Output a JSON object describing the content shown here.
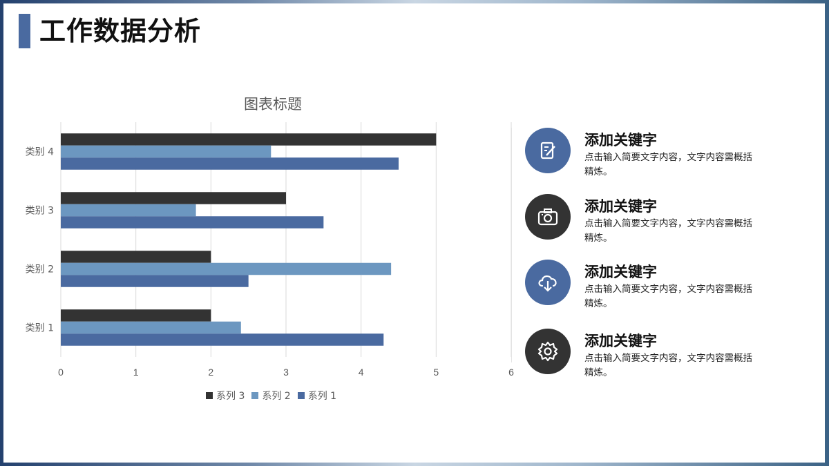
{
  "page": {
    "title": "工作数据分析"
  },
  "chart_data": {
    "type": "bar",
    "orientation": "horizontal",
    "title": "图表标题",
    "categories": [
      "类别 1",
      "类别 2",
      "类别 3",
      "类别 4"
    ],
    "series": [
      {
        "name": "系列 1",
        "values": [
          4.3,
          2.5,
          3.5,
          4.5
        ],
        "color": "#4a6aa0"
      },
      {
        "name": "系列 2",
        "values": [
          2.4,
          4.4,
          1.8,
          2.8
        ],
        "color": "#6c97c0"
      },
      {
        "name": "系列 3",
        "values": [
          2.0,
          2.0,
          3.0,
          5.0
        ],
        "color": "#333333"
      }
    ],
    "xlim": [
      0,
      6
    ],
    "xticks": [
      0,
      1,
      2,
      3,
      4,
      5,
      6
    ],
    "grid": true,
    "legend": "bottom",
    "legend_order": [
      "系列 3",
      "系列 2",
      "系列 1"
    ]
  },
  "features": [
    {
      "title": "添加关键字",
      "desc": "点击输入简要文字内容，文字内容需概括精炼。",
      "icon": "edit-note-icon",
      "color": "#4a6aa0"
    },
    {
      "title": "添加关键字",
      "desc": "点击输入简要文字内容，文字内容需概括精炼。",
      "icon": "camera-icon",
      "color": "#333333"
    },
    {
      "title": "添加关键字",
      "desc": "点击输入简要文字内容，文字内容需概括精炼。",
      "icon": "cloud-download-icon",
      "color": "#4a6aa0"
    },
    {
      "title": "添加关键字",
      "desc": "点击输入简要文字内容，文字内容需概括精炼。",
      "icon": "gear-icon",
      "color": "#333333"
    }
  ]
}
